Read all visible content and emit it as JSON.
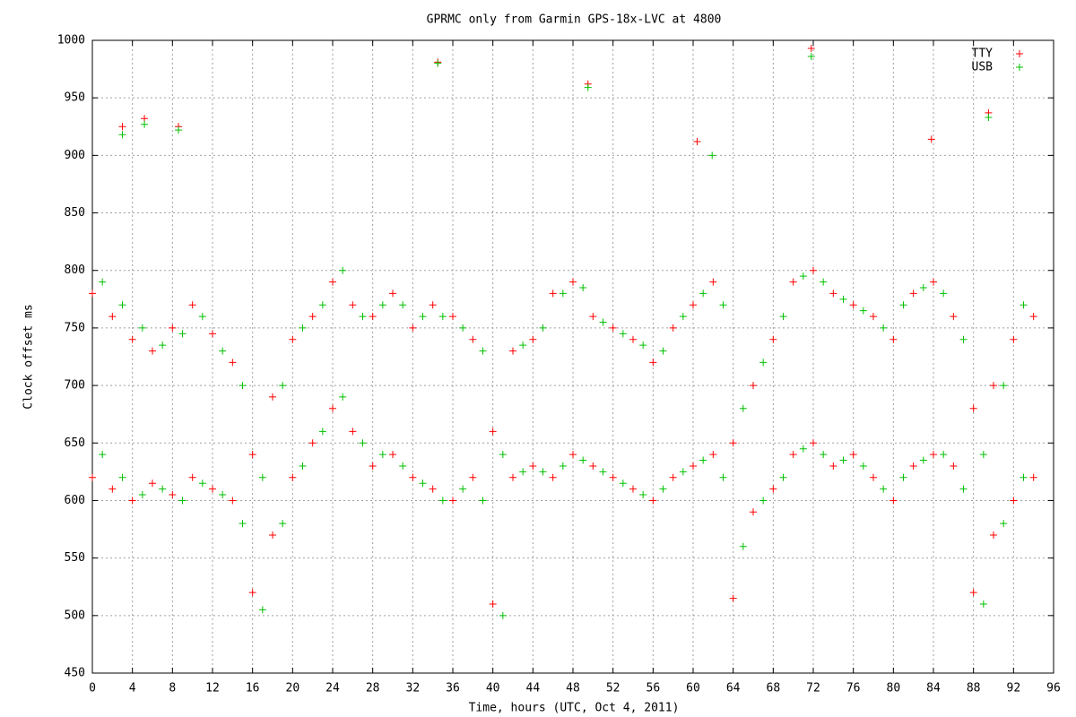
{
  "chart_data": {
    "type": "scatter",
    "title": "GPRMC only from Garmin GPS-18x-LVC at 4800",
    "xlabel": "Time, hours (UTC, Oct 4, 2011)",
    "ylabel": "Clock offset ms",
    "xlim": [
      0,
      96
    ],
    "ylim": [
      450,
      1000
    ],
    "xticks": [
      0,
      4,
      8,
      12,
      16,
      20,
      24,
      28,
      32,
      36,
      40,
      44,
      48,
      52,
      56,
      60,
      64,
      68,
      72,
      76,
      80,
      84,
      88,
      92,
      96
    ],
    "yticks": [
      450,
      500,
      550,
      600,
      650,
      700,
      750,
      800,
      850,
      900,
      950,
      1000
    ],
    "grid": true,
    "legend": "upper right",
    "marker": "+",
    "series": [
      {
        "name": "TTY",
        "color": "#ff0000",
        "x": [
          0,
          0,
          2,
          2,
          4,
          4,
          6,
          6,
          8,
          8,
          10,
          10,
          12,
          12,
          14,
          14,
          16,
          16,
          18,
          18,
          20,
          20,
          22,
          22,
          24,
          24,
          26,
          26,
          28,
          28,
          30,
          30,
          32,
          32,
          34,
          34,
          36,
          36,
          38,
          38,
          40,
          40,
          42,
          42,
          44,
          44,
          46,
          46,
          48,
          48,
          50,
          50,
          52,
          52,
          54,
          54,
          56,
          56,
          58,
          58,
          60,
          60,
          62,
          62,
          64,
          64,
          66,
          66,
          68,
          68,
          70,
          70,
          72,
          72,
          74,
          74,
          76,
          76,
          78,
          78,
          80,
          80,
          82,
          82,
          84,
          84,
          86,
          86,
          88,
          88,
          90,
          90,
          92,
          92,
          94,
          94,
          3,
          5.2,
          8.6,
          34.5,
          49.5,
          71.8,
          89.5,
          83.8,
          60.4
        ],
        "values": [
          620,
          780,
          610,
          760,
          600,
          740,
          615,
          730,
          605,
          750,
          620,
          770,
          610,
          745,
          600,
          720,
          520,
          640,
          570,
          690,
          620,
          740,
          650,
          760,
          680,
          790,
          660,
          770,
          630,
          760,
          640,
          780,
          620,
          750,
          610,
          770,
          600,
          760,
          620,
          740,
          510,
          660,
          620,
          730,
          630,
          740,
          620,
          780,
          640,
          790,
          630,
          760,
          620,
          750,
          610,
          740,
          600,
          720,
          620,
          750,
          630,
          770,
          640,
          790,
          515,
          650,
          590,
          700,
          610,
          740,
          640,
          790,
          650,
          800,
          630,
          780,
          640,
          770,
          620,
          760,
          600,
          740,
          630,
          780,
          640,
          790,
          630,
          760,
          520,
          680,
          570,
          700,
          600,
          740,
          620,
          760,
          925,
          932,
          925,
          981,
          962,
          993,
          937,
          914,
          912
        ]
      },
      {
        "name": "USB",
        "color": "#00c000",
        "x": [
          1,
          1,
          3,
          3,
          5,
          5,
          7,
          7,
          9,
          9,
          11,
          11,
          13,
          13,
          15,
          15,
          17,
          17,
          19,
          19,
          21,
          21,
          23,
          23,
          25,
          25,
          27,
          27,
          29,
          29,
          31,
          31,
          33,
          33,
          35,
          35,
          37,
          37,
          39,
          39,
          41,
          41,
          43,
          43,
          45,
          45,
          47,
          47,
          49,
          49,
          51,
          51,
          53,
          53,
          55,
          55,
          57,
          57,
          59,
          59,
          61,
          61,
          63,
          63,
          65,
          65,
          67,
          67,
          69,
          69,
          71,
          71,
          73,
          73,
          75,
          75,
          77,
          77,
          79,
          79,
          81,
          81,
          83,
          83,
          85,
          85,
          87,
          87,
          89,
          89,
          91,
          91,
          93,
          93,
          3,
          5.2,
          8.6,
          34.5,
          49.5,
          71.8,
          89.5,
          61.9
        ],
        "values": [
          640,
          790,
          620,
          770,
          605,
          750,
          610,
          735,
          600,
          745,
          615,
          760,
          605,
          730,
          580,
          700,
          505,
          620,
          580,
          700,
          630,
          750,
          660,
          770,
          690,
          800,
          650,
          760,
          640,
          770,
          630,
          770,
          615,
          760,
          600,
          760,
          610,
          750,
          600,
          730,
          500,
          640,
          625,
          735,
          625,
          750,
          630,
          780,
          635,
          785,
          625,
          755,
          615,
          745,
          605,
          735,
          610,
          730,
          625,
          760,
          635,
          780,
          620,
          770,
          560,
          680,
          600,
          720,
          620,
          760,
          645,
          795,
          640,
          790,
          635,
          775,
          630,
          765,
          610,
          750,
          620,
          770,
          635,
          785,
          640,
          780,
          610,
          740,
          510,
          640,
          580,
          700,
          620,
          770,
          918,
          927,
          922,
          980,
          959,
          986,
          933,
          900
        ]
      }
    ]
  }
}
